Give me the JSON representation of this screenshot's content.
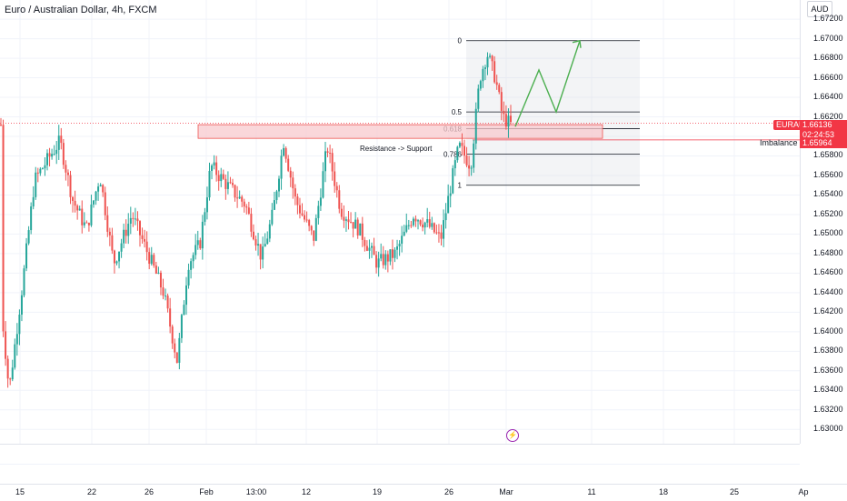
{
  "header": {
    "title": "Euro / Australian Dollar, 4h, FXCM"
  },
  "price_axis": {
    "currency": "AUD",
    "labels": [
      "1.67200",
      "1.67000",
      "1.66800",
      "1.66600",
      "1.66400",
      "1.66200",
      "1.66000",
      "1.65800",
      "1.65600",
      "1.65400",
      "1.65200",
      "1.65000",
      "1.64800",
      "1.64600",
      "1.64400",
      "1.64200",
      "1.64000",
      "1.63800",
      "1.63600",
      "1.63400",
      "1.63200",
      "1.63000"
    ]
  },
  "time_axis": {
    "labels": [
      "15",
      "22",
      "26",
      "Feb",
      "13:00",
      "12",
      "19",
      "26",
      "Mar",
      "11",
      "18",
      "25",
      "Ap"
    ]
  },
  "price_tags": {
    "symbol": "EURAUD",
    "last_price": "1.66136",
    "countdown": "02:24:53",
    "imbalance_price": "1.65964",
    "imbalance_label": "Imbalance"
  },
  "annotations": {
    "zone_label": "Resistance -> Support",
    "fib_levels": [
      "0",
      "0.5",
      "0.618",
      "0.786",
      "1"
    ]
  },
  "colors": {
    "up": "#26a69a",
    "down": "#ef5350",
    "zone_fill": "#f8c9ce",
    "zone_stroke": "#ef5350",
    "arrow": "#4caf50",
    "tag": "#f23645"
  },
  "chart_data": {
    "type": "candlestick",
    "symbol": "EURAUD",
    "timeframe": "4h",
    "ylim": [
      1.629,
      1.6735
    ],
    "last_price": 1.66136,
    "imbalance_price": 1.65964,
    "resistance_support_zone": [
      1.6598,
      1.6612
    ],
    "fib_retracement": {
      "0": 1.6698,
      "0.5": 1.6625,
      "0.618": 1.6608,
      "0.786": 1.6582,
      "1": 1.655
    },
    "projection_path": [
      1.661,
      1.6668,
      1.6625,
      1.6698
    ]
  }
}
